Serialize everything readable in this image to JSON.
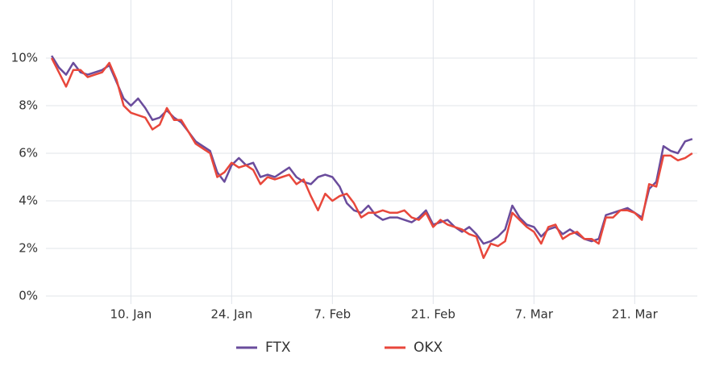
{
  "chart_data": {
    "type": "line",
    "x": [
      -1,
      0,
      1,
      2,
      3,
      4,
      5,
      6,
      7,
      8,
      9,
      10,
      11,
      12,
      13,
      14,
      15,
      16,
      17,
      18,
      19,
      20,
      21,
      22,
      23,
      24,
      25,
      26,
      27,
      28,
      29,
      30,
      31,
      32,
      33,
      34,
      35,
      36,
      37,
      38,
      39,
      40,
      41,
      42,
      43,
      44,
      45,
      46,
      47,
      48,
      49,
      50,
      51,
      52,
      53,
      54,
      55,
      56,
      57,
      58,
      59,
      60,
      61,
      62,
      63,
      64,
      65,
      66,
      67,
      68,
      69,
      70,
      71,
      72,
      73,
      74,
      75,
      76,
      77,
      78,
      79,
      80,
      81,
      82,
      83,
      84,
      85,
      86,
      87,
      88
    ],
    "series": [
      {
        "name": "FTX",
        "color": "#6a4c9c",
        "values": [
          10.1,
          9.6,
          9.3,
          9.8,
          9.4,
          9.3,
          9.4,
          9.5,
          9.7,
          9.0,
          8.3,
          8.0,
          8.3,
          7.9,
          7.4,
          7.5,
          7.8,
          7.5,
          7.3,
          6.9,
          6.5,
          6.3,
          6.1,
          5.2,
          4.8,
          5.5,
          5.8,
          5.5,
          5.6,
          5.0,
          5.1,
          5.0,
          5.2,
          5.4,
          5.0,
          4.8,
          4.7,
          5.0,
          5.1,
          5.0,
          4.6,
          3.9,
          3.6,
          3.5,
          3.8,
          3.4,
          3.2,
          3.3,
          3.3,
          3.2,
          3.1,
          3.3,
          3.6,
          3.0,
          3.1,
          3.2,
          2.9,
          2.7,
          2.9,
          2.6,
          2.2,
          2.3,
          2.5,
          2.8,
          3.8,
          3.3,
          3.0,
          2.9,
          2.5,
          2.8,
          2.9,
          2.6,
          2.8,
          2.6,
          2.4,
          2.3,
          2.4,
          3.4,
          3.5,
          3.6,
          3.7,
          3.5,
          3.3,
          4.5,
          4.8,
          6.3,
          6.1,
          6.0,
          6.5,
          6.6
        ]
      },
      {
        "name": "OKX",
        "color": "#e8473b",
        "values": [
          10.0,
          9.4,
          8.8,
          9.5,
          9.5,
          9.2,
          9.3,
          9.4,
          9.8,
          9.1,
          8.0,
          7.7,
          7.6,
          7.5,
          7.0,
          7.2,
          7.9,
          7.4,
          7.4,
          6.9,
          6.4,
          6.2,
          6.0,
          5.0,
          5.2,
          5.6,
          5.4,
          5.5,
          5.3,
          4.7,
          5.0,
          4.9,
          5.0,
          5.1,
          4.7,
          4.9,
          4.2,
          3.6,
          4.3,
          4.0,
          4.2,
          4.3,
          3.9,
          3.3,
          3.5,
          3.5,
          3.6,
          3.5,
          3.5,
          3.6,
          3.3,
          3.2,
          3.5,
          2.9,
          3.2,
          3.0,
          2.9,
          2.8,
          2.6,
          2.5,
          1.6,
          2.2,
          2.1,
          2.3,
          3.5,
          3.2,
          2.9,
          2.7,
          2.2,
          2.9,
          3.0,
          2.4,
          2.6,
          2.7,
          2.4,
          2.4,
          2.2,
          3.3,
          3.3,
          3.6,
          3.6,
          3.5,
          3.2,
          4.7,
          4.6,
          5.9,
          5.9,
          5.7,
          5.8,
          6.0
        ]
      }
    ],
    "xlim": [
      -1.8,
      88.7
    ],
    "xticks": [
      {
        "value": 10,
        "label": "10. Jan"
      },
      {
        "value": 24,
        "label": "24. Jan"
      },
      {
        "value": 38,
        "label": "7. Feb"
      },
      {
        "value": 52,
        "label": "21. Feb"
      },
      {
        "value": 66,
        "label": "7. Mar"
      },
      {
        "value": 80,
        "label": "21. Mar"
      }
    ],
    "ylim": [
      0,
      12
    ],
    "yticks": [
      {
        "value": 0,
        "label": "0%"
      },
      {
        "value": 2,
        "label": "2%"
      },
      {
        "value": 4,
        "label": "4%"
      },
      {
        "value": 6,
        "label": "6%"
      },
      {
        "value": 8,
        "label": "8%"
      },
      {
        "value": 10,
        "label": "10%"
      }
    ],
    "grid": true
  }
}
